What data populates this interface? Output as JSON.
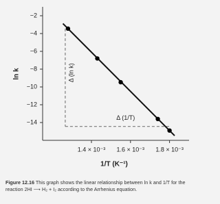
{
  "chart_data": {
    "type": "scatter",
    "x_label": "1/T (K⁻¹)",
    "y_label": "ln k",
    "x": [
      0.00128,
      0.00143,
      0.00155,
      0.00174,
      0.0018
    ],
    "values": [
      -3.45,
      -6.8,
      -9.47,
      -13.6,
      -14.9
    ],
    "color": "#000000",
    "xlim": [
      0.00115,
      0.0019
    ],
    "ylim": [
      -16,
      -1
    ],
    "xticks": [
      {
        "value": 0.0014,
        "label": "1.4 × 10⁻³"
      },
      {
        "value": 0.0016,
        "label": "1.6 × 10⁻³"
      },
      {
        "value": 0.0018,
        "label": "1.8 × 10⁻³"
      }
    ],
    "yticks": [
      {
        "value": -2,
        "label": "−2"
      },
      {
        "value": -4,
        "label": "−4"
      },
      {
        "value": -6,
        "label": "−6"
      },
      {
        "value": -8,
        "label": "−8"
      },
      {
        "value": -10,
        "label": "−10"
      },
      {
        "value": -12,
        "label": "−12"
      },
      {
        "value": -14,
        "label": "−14"
      }
    ],
    "annotations": [
      "Δ (ln k)",
      "Δ (1/T)"
    ],
    "caption": {
      "label": "Figure 12.16",
      "text": "This graph shows the linear relationship between ln k and 1/T for the reaction 2HI ⟶ H₂ + I₂ according to the Arrhenius equation."
    }
  }
}
